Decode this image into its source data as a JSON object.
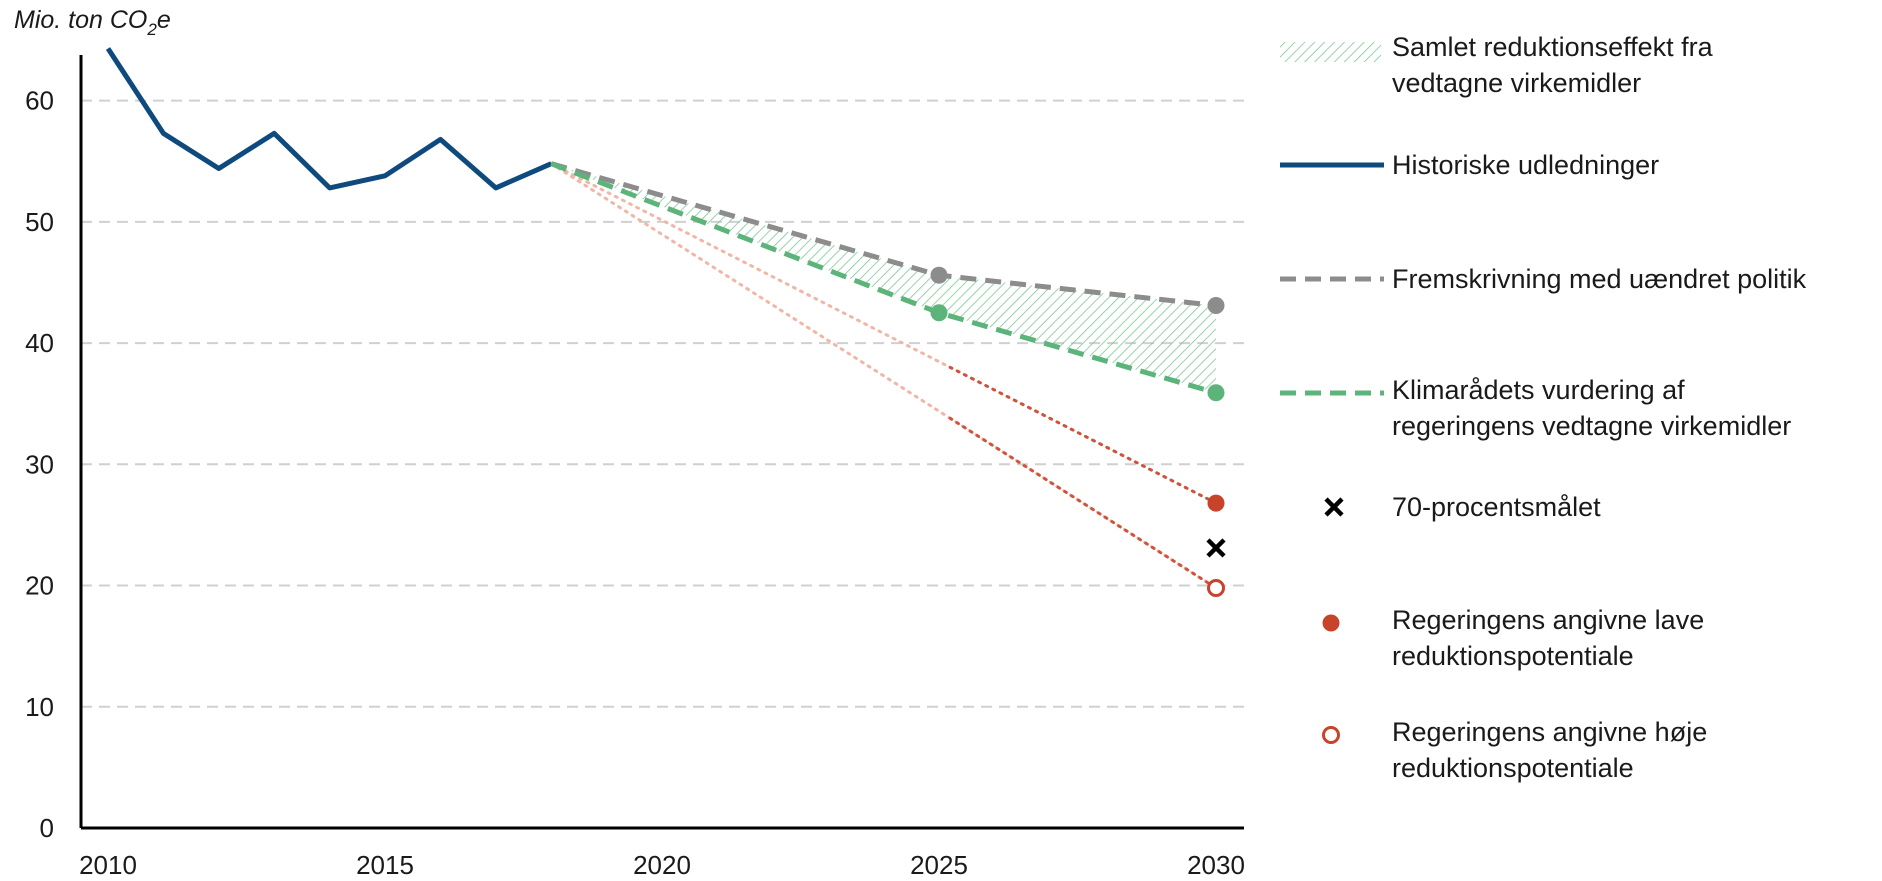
{
  "chart_data": {
    "type": "line",
    "unit_label": {
      "main": "Mio. ton CO",
      "sub": "2",
      "tail": "e"
    },
    "xlim": [
      2010,
      2030
    ],
    "ylim": [
      0,
      65
    ],
    "x_ticks": [
      2010,
      2015,
      2020,
      2025,
      2030
    ],
    "y_ticks": [
      0,
      10,
      20,
      30,
      40,
      50,
      60
    ],
    "grid": "horizontal dashed",
    "legend_position": "right",
    "colors": {
      "historical": "#0e4a7e",
      "projection": "#8c8c8c",
      "assessment": "#5cb47a",
      "hatch": "#7cc896",
      "low_potential": "#c7432a",
      "high_potential": "#c7432a",
      "target": "#000000",
      "axis": "#000000",
      "grid": "#d0d0d0"
    },
    "series": [
      {
        "key": "historical",
        "x": [
          2010,
          2011,
          2012,
          2013,
          2014,
          2015,
          2016,
          2017,
          2018
        ],
        "y": [
          64.3,
          57.3,
          54.4,
          57.3,
          52.8,
          53.8,
          56.8,
          52.8,
          54.8
        ]
      },
      {
        "key": "projection",
        "x": [
          2018,
          2025,
          2030
        ],
        "y": [
          54.8,
          45.6,
          43.1
        ]
      },
      {
        "key": "assessment",
        "x": [
          2018,
          2025,
          2030
        ],
        "y": [
          54.8,
          42.5,
          35.9
        ]
      },
      {
        "key": "low_potential",
        "x": [
          2018,
          2030
        ],
        "y": [
          54.8,
          26.8
        ]
      },
      {
        "key": "high_potential",
        "x": [
          2018,
          2030
        ],
        "y": [
          54.8,
          19.8
        ]
      },
      {
        "key": "target",
        "x": [
          2030
        ],
        "y": [
          23.1
        ]
      }
    ],
    "legend": [
      {
        "key": "hatch",
        "lines": [
          "Samlet reduktionseffekt fra",
          "vedtagne virkemidler"
        ]
      },
      {
        "key": "historical",
        "lines": [
          "Historiske udledninger"
        ]
      },
      {
        "key": "projection",
        "lines": [
          "Fremskrivning med uændret politik"
        ]
      },
      {
        "key": "assessment",
        "lines": [
          "Klimarådets vurdering af",
          "regeringens vedtagne virkemidler"
        ]
      },
      {
        "key": "target",
        "lines": [
          "70-procentsmålet"
        ]
      },
      {
        "key": "low_potential",
        "lines": [
          "Regeringens angivne lave",
          "reduktionspotentiale"
        ]
      },
      {
        "key": "high_potential",
        "lines": [
          "Regeringens angivne høje",
          "reduktionspotentiale"
        ]
      }
    ]
  }
}
